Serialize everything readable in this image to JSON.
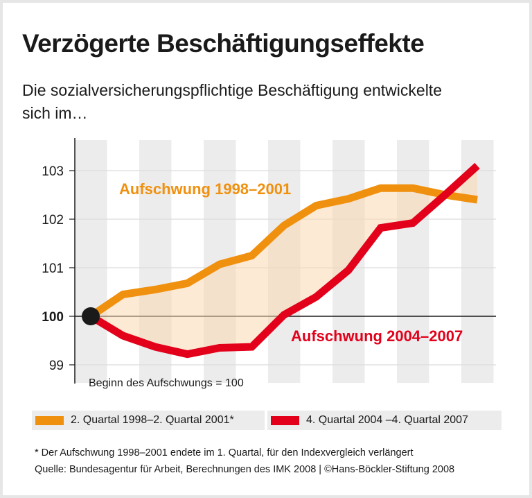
{
  "title": "Verzögerte Beschäftigungseffekte",
  "subtitle": "Die sozialversicherungspflichtige Beschäftigung entwickelte sich im…",
  "chart_data": {
    "type": "line",
    "ylim": [
      99,
      103
    ],
    "yticks": [
      "99",
      "100",
      "101",
      "102",
      "103"
    ],
    "baseline": 100,
    "baseline_note": "Beginn des Aufschwungs = 100",
    "grid": "horizontal",
    "points_per_series": 13,
    "series": [
      {
        "name": "2. Quartal 1998–2. Quartal 2001*",
        "label": "Aufschwung 1998–2001",
        "color": "#f0900f",
        "values": [
          100,
          100.45,
          100.55,
          100.68,
          101.07,
          101.25,
          101.87,
          102.28,
          102.42,
          102.64,
          102.64,
          102.5,
          102.4
        ]
      },
      {
        "name": "4. Quartal 2004 –4. Quartal 2007",
        "label": "Aufschwung 2004–2007",
        "color": "#e2001a",
        "values": [
          100,
          99.6,
          99.37,
          99.22,
          99.35,
          99.37,
          100.03,
          100.4,
          100.95,
          101.82,
          101.92,
          102.5,
          103.1
        ]
      }
    ],
    "legend": "bottom"
  },
  "footnote": "* Der Aufschwung 1998–2001 endete im 1. Quartal, für den Indexvergleich verlängert",
  "source": "Quelle: Bundesagentur für Arbeit, Berechnungen des IMK 2008 | ©Hans-Böckler-Stiftung 2008"
}
